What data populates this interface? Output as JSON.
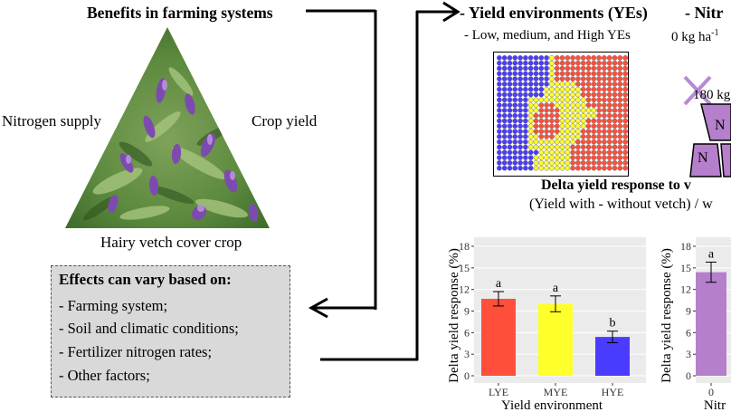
{
  "left": {
    "title": "Benefits in farming systems",
    "label_left": "Nitrogen supply",
    "label_right": "Crop yield",
    "label_bottom": "Hairy vetch cover crop",
    "effects": {
      "heading": "Effects can vary based on:",
      "items": [
        "- Farming system;",
        "- Soil and climatic conditions;",
        "- Fertilizer nitrogen rates;",
        "- Other factors;"
      ]
    }
  },
  "right": {
    "yield_env_title": "- Yield environments (YEs)",
    "yield_env_sub": "- Low, medium, and High YEs",
    "nitrogen_title": "- Nitr",
    "nitrogen_sub_0": "0 kg ha",
    "nitrogen_sub_0_sup": "-1",
    "nitrogen_180": "180 kg",
    "n_letter": "N",
    "delta_title": "Delta yield response to v",
    "delta_sub": "(Yield with - without vetch) / w"
  },
  "chart_data": [
    {
      "type": "bar",
      "xlabel": "Yield environment",
      "ylabel": "Delta yield response (%)",
      "ylim": [
        0,
        18
      ],
      "yticks": [
        "0",
        "3",
        "6",
        "9",
        "12",
        "15",
        "18"
      ],
      "categories": [
        "LYE",
        "MYE",
        "HYE"
      ],
      "values": [
        10.7,
        10.0,
        5.4
      ],
      "errors": [
        1.0,
        1.1,
        0.8
      ],
      "letters": [
        "a",
        "a",
        "b"
      ],
      "colors": [
        "#ff4f3b",
        "#ffff2a",
        "#4a3cff"
      ],
      "grid": true
    },
    {
      "type": "bar",
      "xlabel": "Nitr",
      "ylabel": "Delta yield response (%)",
      "ylim": [
        0,
        18
      ],
      "yticks": [
        "0",
        "3",
        "6",
        "9",
        "12",
        "15",
        "18"
      ],
      "categories": [
        "0"
      ],
      "values": [
        14.4
      ],
      "errors": [
        1.4
      ],
      "letters": [
        "a"
      ],
      "colors": [
        "#b57fcb"
      ],
      "grid": true
    }
  ]
}
